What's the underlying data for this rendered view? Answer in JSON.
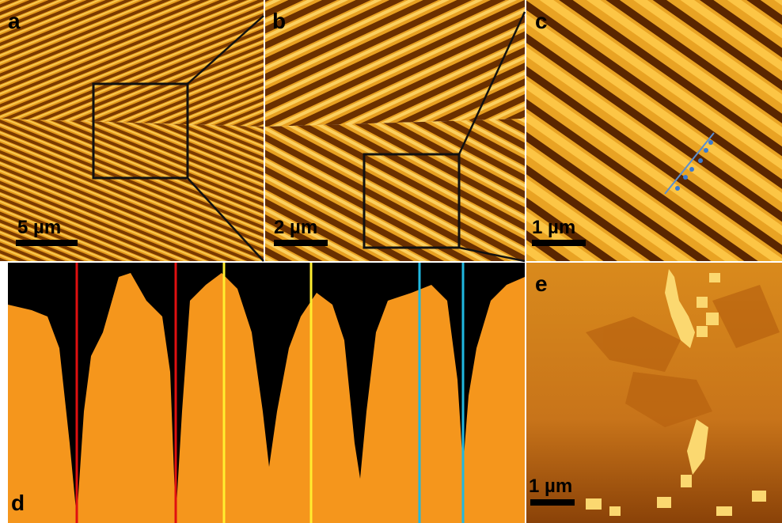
{
  "panels": [
    {
      "label": "a",
      "scale_bar": "5 µm"
    },
    {
      "label": "b",
      "scale_bar": "2 µm"
    },
    {
      "label": "c",
      "scale_bar": "1 µm"
    },
    {
      "label": "d"
    },
    {
      "label": "e",
      "scale_bar": "1 µm"
    }
  ]
}
